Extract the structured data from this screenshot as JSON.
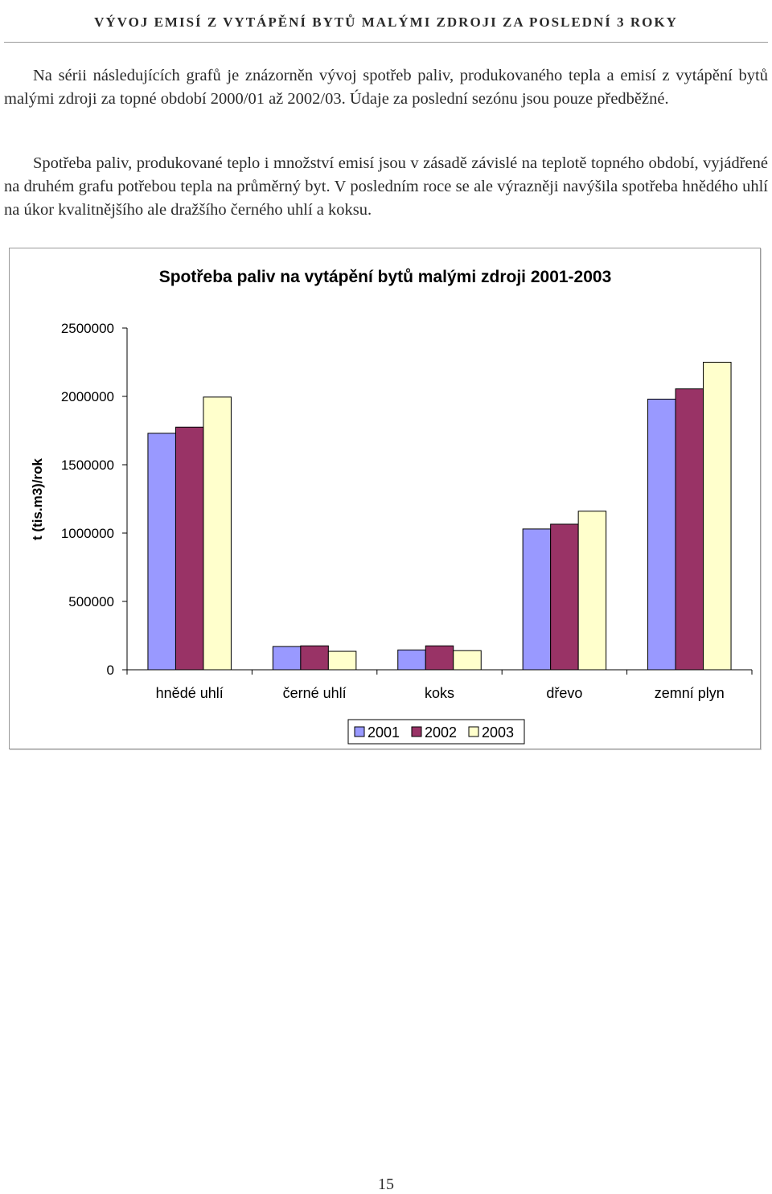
{
  "header": {
    "title": "VÝVOJ EMISÍ Z VYTÁPĚNÍ BYTŮ MALÝMI ZDROJI ZA POSLEDNÍ 3 ROKY"
  },
  "paragraphs": [
    "Na sérii následujících grafů je znázorněn vývoj spotřeb paliv, produkovaného tepla a emisí z vytápění bytů malými zdroji za topné období 2000/01 až 2002/03. Údaje za poslední sezónu jsou pouze předběžné.",
    "Spotřeba paliv, produkované teplo i množství emisí jsou v zásadě závislé na teplotě topného období, vyjádřené na druhém grafu potřebou tepla na průměrný byt. V posledním roce se ale výrazněji navýšila spotřeba hnědého uhlí na úkor kvalitnějšího ale dražšího černého uhlí a koksu."
  ],
  "chart_data": {
    "type": "bar",
    "title": "Spotřeba paliv na vytápění bytů malými zdroji 2001-2003",
    "xlabel": "",
    "ylabel": "t (tis.m3)/rok",
    "ylim": [
      0,
      2500000
    ],
    "yticks": [
      "0",
      "500000",
      "1000000",
      "1500000",
      "2000000",
      "2500000"
    ],
    "ytick_values": [
      0,
      500000,
      1000000,
      1500000,
      2000000,
      2500000
    ],
    "categories": [
      "hnědé uhlí",
      "černé uhlí",
      "koks",
      "dřevo",
      "zemní plyn"
    ],
    "series": [
      {
        "name": "2001",
        "color": "#9999ff",
        "values": [
          1730000,
          170000,
          145000,
          1030000,
          1980000
        ]
      },
      {
        "name": "2002",
        "color": "#993366",
        "values": [
          1775000,
          175000,
          175000,
          1065000,
          2055000
        ]
      },
      {
        "name": "2003",
        "color": "#ffffcc",
        "values": [
          1995000,
          135000,
          140000,
          1160000,
          2250000
        ]
      }
    ],
    "grid": false,
    "legend_position": "bottom"
  },
  "footer": {
    "page_number": "15"
  }
}
